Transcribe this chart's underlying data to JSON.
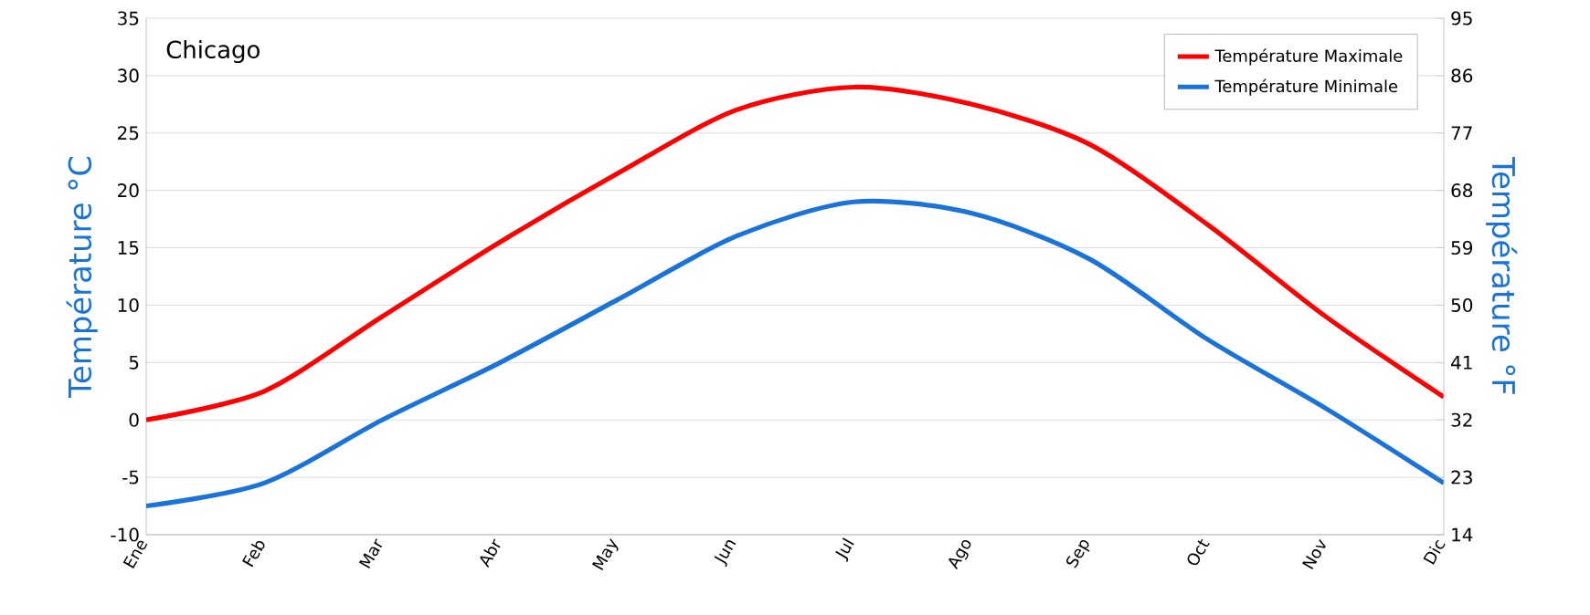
{
  "chart_data": {
    "type": "line",
    "title": "Chicago",
    "categories": [
      "Ene",
      "Feb",
      "Mar",
      "Abr",
      "May",
      "Jun",
      "Jul",
      "Ago",
      "Sep",
      "Oct",
      "Nov",
      "Dic"
    ],
    "series": [
      {
        "name": "Température Maximale",
        "color": "#ff0000",
        "values": [
          0,
          2.5,
          9,
          15.5,
          21.5,
          27,
          29,
          27.5,
          24,
          17,
          9,
          2
        ]
      },
      {
        "name": "Température Minimale",
        "color": "#1a73d9",
        "values": [
          -7.5,
          -5.5,
          0,
          5,
          10.5,
          16,
          19,
          18,
          14,
          7,
          1,
          -5.5
        ]
      }
    ],
    "ylabel": "Température °C",
    "y2label": "Température °F",
    "ylim": [
      -10,
      35
    ],
    "yticks": [
      -10,
      -5,
      0,
      5,
      10,
      15,
      20,
      25,
      30,
      35
    ],
    "y2lim": [
      14,
      95
    ],
    "y2ticks": [
      14,
      23,
      32,
      41,
      50,
      59,
      68,
      77,
      86,
      95
    ],
    "grid": "y",
    "legend": "top right",
    "marker": "none",
    "line_style": "solid"
  }
}
